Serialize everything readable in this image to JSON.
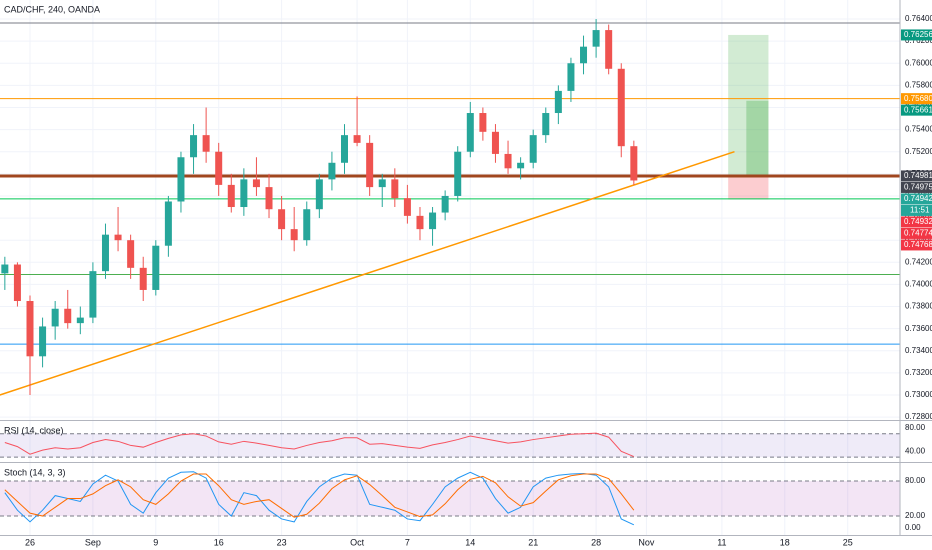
{
  "chart_data": [
    {
      "type": "candlestick",
      "title": "CAD/CHF, 240, OANDA",
      "categories": [
        null,
        null,
        "26",
        null,
        null,
        null,
        null,
        "Sep",
        null,
        null,
        null,
        null,
        "9",
        null,
        null,
        null,
        null,
        "16",
        null,
        null,
        null,
        null,
        "23",
        null,
        null,
        null,
        null,
        null,
        "Oct",
        null,
        null,
        null,
        "7",
        null,
        null,
        null,
        null,
        "14",
        null,
        null,
        null,
        null,
        "21",
        null,
        null,
        null,
        null,
        "28",
        null,
        null,
        null,
        "Nov",
        null,
        null,
        null,
        null,
        null,
        "11",
        null,
        null,
        null,
        null,
        "18",
        null,
        null,
        null,
        null,
        "25"
      ],
      "open": [
        0.741,
        0.7418,
        0.7385,
        0.7335,
        0.7362,
        0.7378,
        0.7365,
        0.737,
        0.7412,
        0.7445,
        0.744,
        0.7415,
        0.7395,
        0.7435,
        0.7475,
        0.7515,
        0.7535,
        0.752,
        0.749,
        0.747,
        0.7495,
        0.7488,
        0.7468,
        0.745,
        0.744,
        0.7468,
        0.7495,
        0.751,
        0.7535,
        0.7528,
        0.7488,
        0.7495,
        0.7478,
        0.7462,
        0.745,
        0.7465,
        0.748,
        0.752,
        0.7555,
        0.7538,
        0.7518,
        0.7505,
        0.751,
        0.7535,
        0.7555,
        0.7575,
        0.76,
        0.7615,
        0.763,
        0.7595,
        0.7525,
        null,
        null,
        null,
        null,
        null,
        null,
        null,
        null,
        null,
        null,
        null,
        null,
        null,
        null,
        null,
        null,
        null
      ],
      "high": [
        0.7425,
        0.742,
        0.739,
        0.737,
        0.7385,
        0.7395,
        0.738,
        0.742,
        0.7455,
        0.747,
        0.7445,
        0.7425,
        0.744,
        0.748,
        0.752,
        0.7545,
        0.756,
        0.7528,
        0.75,
        0.7505,
        0.7515,
        0.75,
        0.748,
        0.747,
        0.7475,
        0.75,
        0.752,
        0.7545,
        0.757,
        0.7535,
        0.75,
        0.7505,
        0.749,
        0.747,
        0.747,
        0.7485,
        0.7525,
        0.7565,
        0.756,
        0.7545,
        0.753,
        0.7515,
        0.754,
        0.756,
        0.758,
        0.7605,
        0.7625,
        0.764,
        0.7635,
        0.76,
        0.753,
        null,
        null,
        null,
        null,
        null,
        null,
        null,
        null,
        null,
        null,
        null,
        null,
        null,
        null,
        null,
        null,
        null
      ],
      "low": [
        0.7395,
        0.738,
        0.73,
        0.7325,
        0.735,
        0.736,
        0.7355,
        0.7365,
        0.7405,
        0.743,
        0.7405,
        0.7385,
        0.739,
        0.7425,
        0.7465,
        0.75,
        0.751,
        0.748,
        0.7465,
        0.7462,
        0.748,
        0.746,
        0.744,
        0.743,
        0.7435,
        0.746,
        0.7485,
        0.75,
        0.7525,
        0.748,
        0.747,
        0.747,
        0.7455,
        0.744,
        0.7435,
        0.7458,
        0.7475,
        0.7515,
        0.753,
        0.751,
        0.75,
        0.7495,
        0.7505,
        0.7528,
        0.7545,
        0.7565,
        0.759,
        0.7605,
        0.759,
        0.7515,
        0.749,
        null,
        null,
        null,
        null,
        null,
        null,
        null,
        null,
        null,
        null,
        null,
        null,
        null,
        null,
        null,
        null,
        null
      ],
      "close": [
        0.7418,
        0.7385,
        0.7335,
        0.7362,
        0.7378,
        0.7365,
        0.737,
        0.7412,
        0.7445,
        0.744,
        0.7415,
        0.7395,
        0.7435,
        0.7475,
        0.7515,
        0.7535,
        0.752,
        0.749,
        0.747,
        0.7495,
        0.7488,
        0.7468,
        0.745,
        0.744,
        0.7468,
        0.7495,
        0.751,
        0.7535,
        0.7528,
        0.7488,
        0.7495,
        0.7478,
        0.7462,
        0.745,
        0.7465,
        0.748,
        0.752,
        0.7555,
        0.7538,
        0.7518,
        0.7505,
        0.751,
        0.7535,
        0.7555,
        0.7575,
        0.76,
        0.7615,
        0.763,
        0.7595,
        0.7525,
        0.7494,
        null,
        null,
        null,
        null,
        null,
        null,
        null,
        null,
        null,
        null,
        null,
        null,
        null,
        null,
        null,
        null,
        null
      ],
      "up_color": "#26a69a",
      "down_color": "#ef5350",
      "ylim": [
        0.72774,
        0.76572
      ],
      "yticks": [
        {
          "value": 0.728,
          "label": "0.72800"
        },
        {
          "value": 0.73,
          "label": "0.73000"
        },
        {
          "value": 0.732,
          "label": "0.73200"
        },
        {
          "value": 0.734,
          "label": "0.73400"
        },
        {
          "value": 0.736,
          "label": "0.73600"
        },
        {
          "value": 0.738,
          "label": "0.73800"
        },
        {
          "value": 0.74,
          "label": "0.74000"
        },
        {
          "value": 0.742,
          "label": "0.74200"
        },
        {
          "value": 0.744,
          "label": "0.74400"
        },
        {
          "value": 0.746,
          "label": "0.74600"
        },
        {
          "value": 0.748,
          "label": "0.74800"
        },
        {
          "value": 0.75,
          "label": "0.75000"
        },
        {
          "value": 0.752,
          "label": "0.75200"
        },
        {
          "value": 0.754,
          "label": "0.75400"
        },
        {
          "value": 0.756,
          "label": "0.75600"
        },
        {
          "value": 0.758,
          "label": "0.75800"
        },
        {
          "value": 0.76,
          "label": "0.76000"
        },
        {
          "value": 0.762,
          "label": "0.76200"
        },
        {
          "value": 0.764,
          "label": "0.76400"
        }
      ],
      "grid": true,
      "hlines": [
        {
          "value": 0.76364,
          "color": "#787b86",
          "width": 1
        },
        {
          "value": 0.7568,
          "color": "#ff9800",
          "width": 1
        },
        {
          "value": 0.74981,
          "color": "#a0461e",
          "width": 3
        },
        {
          "value": 0.74774,
          "color": "#00c853",
          "width": 1
        },
        {
          "value": 0.7409,
          "color": "#4caf50",
          "width": 1
        },
        {
          "value": 0.7346,
          "color": "#2196f3",
          "width": 1
        }
      ],
      "trendline": {
        "x": [
          -0.4,
          58
        ],
        "y": [
          0.73,
          0.752
        ],
        "color": "#ff9800"
      },
      "position": {
        "x": [
          57.5,
          60.7
        ],
        "entry": 0.74981,
        "target": 0.76256,
        "stop": 0.74768,
        "current": 0.75661
      },
      "price_labels": [
        {
          "value": 0.76256,
          "label": "0.76256",
          "color": "#089981"
        },
        {
          "value": 0.7568,
          "label": "0.75680",
          "color": "#ff9800"
        },
        {
          "value": 0.75661,
          "label": "0.75661",
          "color": "#089981"
        },
        {
          "value": 0.74981,
          "label": "0.74981",
          "color": "#434651"
        },
        {
          "value": 0.74975,
          "label": "0.74975",
          "color": "#434651"
        },
        {
          "value": 0.74942,
          "label": "0.74942",
          "color": "#26a69a"
        },
        {
          "value": 0.74932,
          "label": "0.74932",
          "color": "#f23645"
        },
        {
          "value": 0.74774,
          "label": "0.74774",
          "color": "#f23645"
        },
        {
          "value": 0.74768,
          "label": "0.74768",
          "color": "#f23645"
        }
      ],
      "countdown": "11:51"
    },
    {
      "type": "line",
      "title": "RSI (14, close)",
      "values": [
        55,
        48,
        35,
        42,
        46,
        44,
        46,
        55,
        60,
        57,
        50,
        47,
        55,
        62,
        68,
        70,
        66,
        56,
        52,
        57,
        54,
        50,
        46,
        44,
        50,
        55,
        58,
        63,
        63,
        52,
        53,
        50,
        47,
        45,
        51,
        55,
        60,
        66,
        62,
        58,
        54,
        56,
        60,
        63,
        66,
        69,
        70,
        71,
        64,
        40,
        31
      ],
      "color": "#f7525f",
      "band": [
        30,
        70
      ],
      "band_color": "#7e57c2",
      "ylim": [
        21.7,
        91.7
      ],
      "yticks": [
        {
          "value": 80,
          "label": "80.00"
        },
        {
          "value": 40,
          "label": "40.00"
        }
      ]
    },
    {
      "type": "line",
      "title": "Stoch (14, 3, 3)",
      "series": [
        {
          "color": "#2196f3",
          "values": [
            60,
            30,
            10,
            30,
            55,
            50,
            45,
            75,
            90,
            80,
            40,
            25,
            60,
            85,
            95,
            96,
            85,
            40,
            20,
            60,
            55,
            30,
            15,
            10,
            45,
            70,
            85,
            92,
            90,
            40,
            35,
            30,
            15,
            12,
            40,
            70,
            85,
            95,
            85,
            50,
            25,
            35,
            70,
            85,
            90,
            92,
            93,
            90,
            70,
            15,
            5
          ]
        },
        {
          "color": "#ff6d00",
          "values": [
            65,
            45,
            25,
            20,
            35,
            50,
            50,
            58,
            72,
            82,
            70,
            48,
            40,
            58,
            80,
            92,
            92,
            72,
            48,
            40,
            45,
            48,
            33,
            18,
            23,
            42,
            67,
            82,
            89,
            74,
            55,
            35,
            27,
            19,
            22,
            41,
            65,
            83,
            88,
            77,
            53,
            37,
            43,
            63,
            82,
            89,
            92,
            92,
            84,
            58,
            30
          ]
        }
      ],
      "band": [
        20,
        80
      ],
      "band_color": "#9c27b0",
      "ylim": [
        -12.5,
        110.9
      ],
      "yticks": [
        {
          "value": 80,
          "label": "80.00"
        },
        {
          "value": 20,
          "label": "20.00"
        },
        {
          "value": 0,
          "label": "0.00"
        }
      ]
    }
  ]
}
